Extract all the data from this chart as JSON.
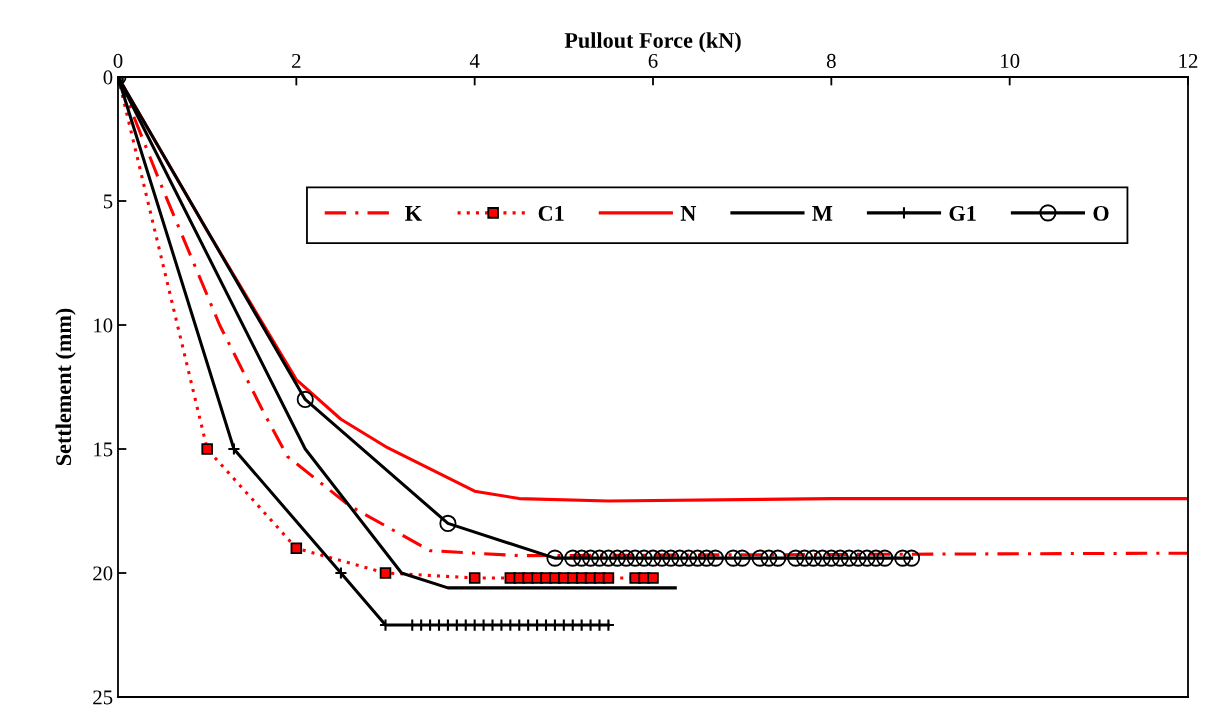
{
  "chart_data": {
    "type": "line",
    "xlabel": "Pullout Force (kN)",
    "ylabel": "Settlement (mm)",
    "xlim": [
      0,
      12
    ],
    "xticks": [
      0,
      2,
      4,
      6,
      8,
      10,
      12
    ],
    "ylim": [
      25,
      0
    ],
    "yticks": [
      0,
      5,
      10,
      15,
      20,
      25
    ],
    "grid": false,
    "legend": "top",
    "series": [
      {
        "name": "K",
        "color": "#ff0000",
        "line_style": "dashdot",
        "marker": "none",
        "x": [
          0,
          0.5,
          1.14,
          1.63,
          1.9,
          2.6,
          3.5,
          4.5,
          12
        ],
        "values": [
          0,
          4.5,
          10,
          13.5,
          15.3,
          17.3,
          19.1,
          19.3,
          19.2
        ]
      },
      {
        "name": "C1",
        "color": "#ff0000",
        "line_style": "dotted",
        "marker": "square",
        "x": [
          0,
          1,
          2,
          3,
          4,
          4.4,
          4.5,
          4.6,
          4.7,
          4.8,
          4.9,
          5.0,
          5.1,
          5.2,
          5.3,
          5.4,
          5.5,
          5.8,
          5.9,
          6.0
        ],
        "values": [
          0,
          15,
          19,
          20,
          20.2,
          20.2,
          20.2,
          20.2,
          20.2,
          20.2,
          20.2,
          20.2,
          20.2,
          20.2,
          20.2,
          20.2,
          20.2,
          20.2,
          20.2,
          20.2
        ]
      },
      {
        "name": "N",
        "color": "#ff0000",
        "line_style": "solid",
        "marker": "none",
        "x": [
          0,
          1,
          2,
          2.5,
          3,
          3.5,
          4,
          4.5,
          5.5,
          8,
          12
        ],
        "values": [
          0,
          6.2,
          12.2,
          13.8,
          14.9,
          15.8,
          16.7,
          17.0,
          17.1,
          17.0,
          17.0
        ]
      },
      {
        "name": "M",
        "color": "#000000",
        "line_style": "solid",
        "marker": "none",
        "x": [
          0,
          2.1,
          3.18,
          3.7,
          4.0,
          4.25,
          4.5,
          4.75,
          5.0,
          5.25,
          5.5,
          5.75,
          6.0,
          6.25
        ],
        "values": [
          0,
          15,
          20,
          20.6,
          20.6,
          20.6,
          20.6,
          20.6,
          20.6,
          20.6,
          20.6,
          20.6,
          20.6,
          20.6
        ]
      },
      {
        "name": "G1",
        "color": "#000000",
        "line_style": "solid",
        "marker": "cross",
        "x": [
          0,
          1.3,
          2.5,
          3.0,
          3.3,
          3.4,
          3.5,
          3.6,
          3.7,
          3.8,
          3.9,
          4.0,
          4.1,
          4.2,
          4.3,
          4.4,
          4.5,
          4.6,
          4.7,
          4.8,
          4.9,
          5.0,
          5.1,
          5.2,
          5.3,
          5.4,
          5.5
        ],
        "values": [
          0,
          15,
          20,
          22.1,
          22.1,
          22.1,
          22.1,
          22.1,
          22.1,
          22.1,
          22.1,
          22.1,
          22.1,
          22.1,
          22.1,
          22.1,
          22.1,
          22.1,
          22.1,
          22.1,
          22.1,
          22.1,
          22.1,
          22.1,
          22.1,
          22.1,
          22.1
        ]
      },
      {
        "name": "O",
        "color": "#000000",
        "line_style": "solid",
        "marker": "circle",
        "x": [
          0,
          2.1,
          3.7,
          4.9,
          5.1,
          5.2,
          5.3,
          5.4,
          5.5,
          5.6,
          5.7,
          5.8,
          5.9,
          6.0,
          6.1,
          6.2,
          6.3,
          6.4,
          6.5,
          6.6,
          6.7,
          6.9,
          7.0,
          7.2,
          7.3,
          7.4,
          7.6,
          7.7,
          7.8,
          7.9,
          8.0,
          8.1,
          8.2,
          8.3,
          8.4,
          8.5,
          8.6,
          8.8,
          8.9
        ],
        "values": [
          0,
          13,
          18,
          19.4,
          19.4,
          19.4,
          19.4,
          19.4,
          19.4,
          19.4,
          19.4,
          19.4,
          19.4,
          19.4,
          19.4,
          19.4,
          19.4,
          19.4,
          19.4,
          19.4,
          19.4,
          19.4,
          19.4,
          19.4,
          19.4,
          19.4,
          19.4,
          19.4,
          19.4,
          19.4,
          19.4,
          19.4,
          19.4,
          19.4,
          19.4,
          19.4,
          19.4,
          19.4,
          19.4
        ]
      }
    ]
  }
}
